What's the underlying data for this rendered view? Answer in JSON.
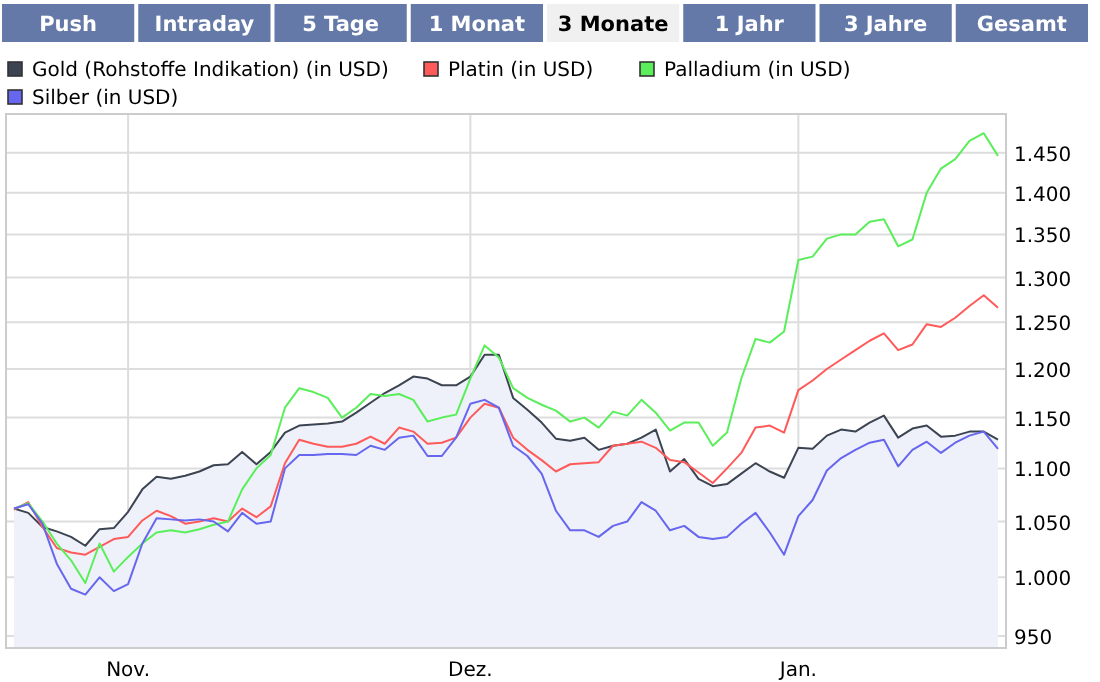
{
  "chart_data": {
    "type": "line",
    "annotations": [
      "Push",
      "Intraday",
      "5 Tage",
      "1 Monat",
      "3 Monate",
      "1 Jahr",
      "3 Jahre",
      "Gesamt"
    ],
    "categories": [
      null,
      null,
      null,
      null,
      null,
      null,
      null,
      null,
      "Nov.",
      null,
      null,
      null,
      null,
      null,
      null,
      null,
      null,
      null,
      null,
      null,
      null,
      null,
      null,
      null,
      null,
      null,
      null,
      null,
      null,
      null,
      null,
      null,
      "Dez.",
      null,
      null,
      null,
      null,
      null,
      null,
      null,
      null,
      null,
      null,
      null,
      null,
      null,
      null,
      null,
      null,
      null,
      null,
      null,
      null,
      null,
      null,
      "Jan.",
      null,
      null,
      null,
      null,
      null,
      null,
      null,
      null,
      null,
      null,
      null,
      null,
      null,
      null
    ],
    "series": [
      {
        "name": "Gold (Rohstoffe Indikation) (in USD)",
        "type": "area",
        "color": "#3c4452",
        "values": [
          1062,
          1058,
          1045,
          1041,
          1036,
          1028,
          1043,
          1044,
          1059,
          1080,
          1092,
          1090,
          1093,
          1097,
          1103,
          1104,
          1116,
          1104,
          1116,
          1135,
          1142,
          1143,
          1144,
          1146,
          1155,
          1165,
          1175,
          1183,
          1192,
          1190,
          1183,
          1183,
          1192,
          1215,
          1215,
          1170,
          1158,
          1145,
          1129,
          1127,
          1130,
          1118,
          1122,
          1124,
          1130,
          1138,
          1097,
          1109,
          1090,
          1083,
          1085,
          1095,
          1105,
          1097,
          1091,
          1120,
          1119,
          1132,
          1138,
          1136,
          1145,
          1152,
          1130,
          1139,
          1142,
          1131,
          1132,
          1136,
          1136,
          1128
        ]
      },
      {
        "name": "Platin (in USD)",
        "color": "#ff5a5a",
        "values": [
          1061,
          1068,
          1045,
          1026,
          1022,
          1020,
          1027,
          1034,
          1036,
          1051,
          1060,
          1055,
          1048,
          1050,
          1053,
          1050,
          1062,
          1054,
          1064,
          1105,
          1128,
          1124,
          1121,
          1121,
          1124,
          1131,
          1124,
          1140,
          1136,
          1124,
          1125,
          1130,
          1150,
          1164,
          1160,
          1130,
          1118,
          1108,
          1097,
          1104,
          1105,
          1106,
          1122,
          1124,
          1126,
          1120,
          1108,
          1106,
          1096,
          1086,
          1100,
          1115,
          1140,
          1142,
          1135,
          1178,
          1188,
          1200,
          1210,
          1220,
          1230,
          1238,
          1220,
          1226,
          1248,
          1245,
          1255,
          1268,
          1280,
          1266
        ]
      },
      {
        "name": "Palladium (in USD)",
        "color": "#5aee5a",
        "values": [
          1062,
          1067,
          1050,
          1030,
          1015,
          995,
          1030,
          1005,
          1018,
          1030,
          1040,
          1042,
          1040,
          1043,
          1047,
          1050,
          1080,
          1100,
          1113,
          1160,
          1180,
          1176,
          1170,
          1150,
          1160,
          1174,
          1172,
          1174,
          1168,
          1146,
          1150,
          1153,
          1190,
          1225,
          1212,
          1180,
          1170,
          1163,
          1157,
          1146,
          1150,
          1140,
          1156,
          1152,
          1168,
          1155,
          1137,
          1145,
          1145,
          1122,
          1135,
          1190,
          1232,
          1228,
          1240,
          1320,
          1324,
          1345,
          1350,
          1350,
          1365,
          1368,
          1336,
          1344,
          1400,
          1430,
          1442,
          1465,
          1475,
          1446
        ]
      },
      {
        "name": "Silber (in USD)",
        "color": "#6666ee",
        "values": [
          1062,
          1066,
          1048,
          1012,
          990,
          985,
          1000,
          988,
          994,
          1030,
          1053,
          1052,
          1051,
          1052,
          1050,
          1041,
          1058,
          1048,
          1050,
          1100,
          1113,
          1113,
          1114,
          1114,
          1113,
          1122,
          1118,
          1130,
          1132,
          1112,
          1112,
          1130,
          1164,
          1168,
          1160,
          1122,
          1112,
          1095,
          1060,
          1042,
          1042,
          1036,
          1046,
          1050,
          1068,
          1060,
          1042,
          1046,
          1036,
          1034,
          1036,
          1048,
          1058,
          1040,
          1020,
          1055,
          1070,
          1098,
          1110,
          1118,
          1125,
          1128,
          1102,
          1118,
          1126,
          1115,
          1125,
          1132,
          1136,
          1119
        ]
      }
    ],
    "log": true,
    "ylim": [
      940,
      1500
    ],
    "yticks": [
      {
        "value": 950,
        "label": "950"
      },
      {
        "value": 1000,
        "label": "1.000"
      },
      {
        "value": 1050,
        "label": "1.050"
      },
      {
        "value": 1100,
        "label": "1.100"
      },
      {
        "value": 1150,
        "label": "1.150"
      },
      {
        "value": 1200,
        "label": "1.200"
      },
      {
        "value": 1250,
        "label": "1.250"
      },
      {
        "value": 1300,
        "label": "1.300"
      },
      {
        "value": 1350,
        "label": "1.350"
      },
      {
        "value": 1400,
        "label": "1.400"
      },
      {
        "value": 1450,
        "label": "1.450"
      }
    ],
    "grid": true,
    "legend": "top left"
  }
}
